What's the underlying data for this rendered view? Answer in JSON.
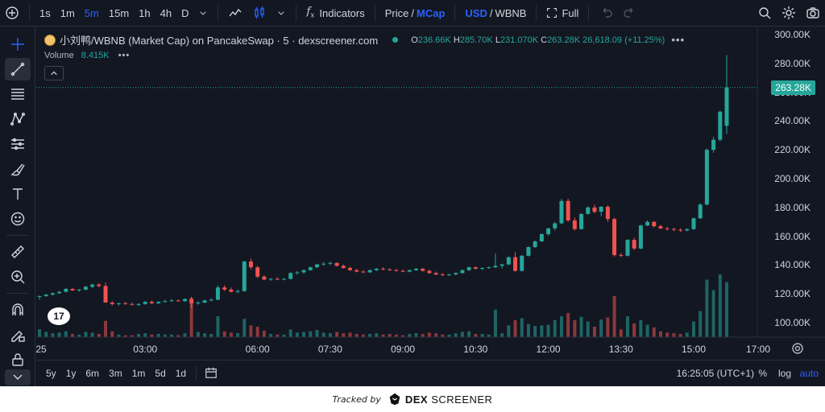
{
  "toolbar": {
    "timeframes": [
      "1s",
      "1m",
      "5m",
      "15m",
      "1h",
      "4h",
      "D"
    ],
    "active_timeframe": "5m",
    "indicators_label": "Indicators",
    "price_label": "Price",
    "mcap_label": "MCap",
    "usd_label": "USD",
    "wbnb_label": "WBNB",
    "full_label": "Full"
  },
  "legend": {
    "symbol": "小刘鸭/WBNB (Market Cap) on PancakeSwap · 5 · dexscreener.com",
    "o_key": "O",
    "o_val": "236.66K",
    "h_key": "H",
    "h_val": "285.70K",
    "l_key": "L",
    "l_val": "231.070K",
    "c_key": "C",
    "c_val": "263.28K",
    "change": "26,618.09 (+11.25%)",
    "volume_label": "Volume",
    "volume_value": "8.415K"
  },
  "price_axis": {
    "labels": [
      "300.00K",
      "280.00K",
      "260.00K",
      "240.00K",
      "220.00K",
      "200.00K",
      "180.00K",
      "160.00K",
      "140.00K",
      "120.00K",
      "100.00K"
    ],
    "current_price": "263.28K"
  },
  "time_axis": {
    "labels": [
      "25",
      "03:00",
      "06:00",
      "07:30",
      "09:00",
      "10:30",
      "12:00",
      "13:30",
      "15:00",
      "17:00"
    ]
  },
  "bottom": {
    "ranges": [
      "5y",
      "1y",
      "6m",
      "3m",
      "1m",
      "5d",
      "1d"
    ],
    "clock": "16:25:05 (UTC+1)",
    "pct": "%",
    "log": "log",
    "auto": "auto"
  },
  "footer": {
    "tracked_by": "Tracked by",
    "dex": "DEX",
    "screener": "SCREENER"
  },
  "tv_logo": "17",
  "colors": {
    "up": "#26a69a",
    "down": "#ef5350",
    "accent": "#2962ff",
    "bg": "#131722"
  },
  "chart_data": {
    "type": "candlestick",
    "ylim": [
      90000,
      305000
    ],
    "candles": [
      [
        118000,
        119000,
        116000,
        118500
      ],
      [
        118500,
        120000,
        118000,
        119500
      ],
      [
        119500,
        121000,
        119000,
        120500
      ],
      [
        120500,
        122000,
        120000,
        121500
      ],
      [
        121500,
        124000,
        121000,
        123500
      ],
      [
        123500,
        124000,
        122000,
        122500
      ],
      [
        122500,
        123500,
        121500,
        123000
      ],
      [
        123000,
        125500,
        122500,
        125000
      ],
      [
        125000,
        127000,
        124000,
        126500
      ],
      [
        126500,
        127500,
        124500,
        125500
      ],
      [
        125500,
        128000,
        115000,
        114000
      ],
      [
        114000,
        115000,
        112000,
        113000
      ],
      [
        113000,
        114000,
        112000,
        113500
      ],
      [
        113500,
        114500,
        112500,
        113000
      ],
      [
        113000,
        114000,
        112000,
        112500
      ],
      [
        112500,
        113500,
        111500,
        113000
      ],
      [
        113000,
        115000,
        112500,
        114500
      ],
      [
        114500,
        115500,
        113000,
        113500
      ],
      [
        113500,
        115000,
        113000,
        114500
      ],
      [
        114500,
        116000,
        114000,
        115000
      ],
      [
        115000,
        116500,
        114500,
        115500
      ],
      [
        115500,
        116000,
        114500,
        115000
      ],
      [
        115000,
        117000,
        114500,
        116500
      ],
      [
        116500,
        118000,
        110000,
        113500
      ],
      [
        113500,
        115000,
        112500,
        114000
      ],
      [
        114000,
        116000,
        113500,
        115500
      ],
      [
        115500,
        117000,
        115000,
        116000
      ],
      [
        116000,
        126000,
        115500,
        124500
      ],
      [
        124500,
        126000,
        122000,
        123000
      ],
      [
        123000,
        124500,
        121000,
        121500
      ],
      [
        121500,
        123000,
        120500,
        122000
      ],
      [
        122000,
        143000,
        121500,
        142500
      ],
      [
        142500,
        144500,
        137000,
        138500
      ],
      [
        138500,
        139500,
        131000,
        132000
      ],
      [
        132000,
        133000,
        129500,
        130000
      ],
      [
        130000,
        131000,
        129000,
        130500
      ],
      [
        130500,
        131500,
        129500,
        130000
      ],
      [
        130000,
        131000,
        129500,
        130500
      ],
      [
        130500,
        135000,
        130000,
        134500
      ],
      [
        134500,
        136000,
        133500,
        135000
      ],
      [
        135000,
        137000,
        134000,
        136500
      ],
      [
        136500,
        139000,
        136000,
        138500
      ],
      [
        138500,
        141000,
        138000,
        140500
      ],
      [
        140500,
        142000,
        139500,
        141000
      ],
      [
        141000,
        142500,
        140000,
        141500
      ],
      [
        141500,
        142000,
        139000,
        139500
      ],
      [
        139500,
        140500,
        137500,
        138000
      ],
      [
        138000,
        139000,
        136000,
        136500
      ],
      [
        136500,
        137500,
        135000,
        135500
      ],
      [
        135500,
        136500,
        134500,
        135000
      ],
      [
        135000,
        137000,
        134500,
        136500
      ],
      [
        136500,
        138000,
        136000,
        137500
      ],
      [
        137500,
        138500,
        136500,
        137000
      ],
      [
        137000,
        138000,
        136000,
        136500
      ],
      [
        136500,
        137500,
        135500,
        136000
      ],
      [
        136000,
        137000,
        135000,
        135500
      ],
      [
        135500,
        137000,
        135000,
        136500
      ],
      [
        136500,
        138000,
        136000,
        137500
      ],
      [
        137500,
        138000,
        135500,
        136000
      ],
      [
        136000,
        137000,
        134000,
        134500
      ],
      [
        134500,
        135500,
        133000,
        133500
      ],
      [
        133500,
        134500,
        132500,
        133000
      ],
      [
        133000,
        134000,
        132500,
        133500
      ],
      [
        133500,
        135000,
        133000,
        134500
      ],
      [
        134500,
        137000,
        134000,
        136500
      ],
      [
        136500,
        139000,
        136000,
        138500
      ],
      [
        138500,
        139000,
        137000,
        137500
      ],
      [
        137500,
        138500,
        136500,
        138000
      ],
      [
        138000,
        139000,
        137500,
        138500
      ],
      [
        138500,
        148000,
        138000,
        139500
      ],
      [
        139500,
        141000,
        137500,
        140500
      ],
      [
        140500,
        146000,
        140000,
        145500
      ],
      [
        145500,
        149000,
        135500,
        136000
      ],
      [
        136000,
        147000,
        135500,
        146500
      ],
      [
        146500,
        153000,
        146000,
        152500
      ],
      [
        152500,
        157000,
        152000,
        156500
      ],
      [
        156500,
        162000,
        156000,
        161500
      ],
      [
        161500,
        166000,
        160500,
        165500
      ],
      [
        165500,
        170000,
        164000,
        169000
      ],
      [
        169000,
        186000,
        168500,
        184500
      ],
      [
        184500,
        186000,
        170000,
        171000
      ],
      [
        171000,
        173000,
        164000,
        165000
      ],
      [
        165000,
        176000,
        164500,
        175500
      ],
      [
        175500,
        181000,
        175000,
        180000
      ],
      [
        180000,
        182000,
        176000,
        177000
      ],
      [
        177000,
        181000,
        174000,
        180500
      ],
      [
        180500,
        181500,
        170000,
        172000
      ],
      [
        172000,
        173000,
        146000,
        147000
      ],
      [
        147000,
        148500,
        145500,
        146500
      ],
      [
        146500,
        158000,
        146000,
        157500
      ],
      [
        157500,
        159000,
        150500,
        151500
      ],
      [
        151500,
        168000,
        151000,
        167500
      ],
      [
        167500,
        171000,
        167000,
        170000
      ],
      [
        170000,
        170500,
        166000,
        167000
      ],
      [
        167000,
        168000,
        165000,
        165500
      ],
      [
        165500,
        166500,
        164000,
        165000
      ],
      [
        165000,
        166000,
        163500,
        164500
      ],
      [
        164500,
        165500,
        163000,
        164000
      ],
      [
        164000,
        165500,
        163500,
        165000
      ],
      [
        165000,
        173000,
        164500,
        172500
      ],
      [
        172500,
        183000,
        172000,
        182000
      ],
      [
        182000,
        221000,
        181500,
        220000
      ],
      [
        220000,
        229000,
        218000,
        227000
      ],
      [
        227000,
        247000,
        226000,
        246500
      ],
      [
        236660,
        285700,
        231070,
        263280
      ]
    ],
    "volume": [
      [
        1200,
        1
      ],
      [
        800,
        1
      ],
      [
        600,
        1
      ],
      [
        700,
        1
      ],
      [
        900,
        1
      ],
      [
        500,
        0
      ],
      [
        400,
        1
      ],
      [
        800,
        1
      ],
      [
        700,
        1
      ],
      [
        500,
        0
      ],
      [
        2500,
        0
      ],
      [
        900,
        0
      ],
      [
        400,
        1
      ],
      [
        300,
        0
      ],
      [
        300,
        0
      ],
      [
        500,
        1
      ],
      [
        600,
        1
      ],
      [
        400,
        0
      ],
      [
        500,
        1
      ],
      [
        400,
        1
      ],
      [
        400,
        1
      ],
      [
        300,
        0
      ],
      [
        600,
        1
      ],
      [
        6000,
        0
      ],
      [
        800,
        1
      ],
      [
        600,
        1
      ],
      [
        500,
        1
      ],
      [
        3200,
        1
      ],
      [
        900,
        0
      ],
      [
        700,
        0
      ],
      [
        600,
        1
      ],
      [
        2800,
        1
      ],
      [
        1800,
        0
      ],
      [
        1600,
        0
      ],
      [
        1000,
        0
      ],
      [
        500,
        1
      ],
      [
        400,
        0
      ],
      [
        400,
        1
      ],
      [
        1200,
        1
      ],
      [
        700,
        1
      ],
      [
        800,
        1
      ],
      [
        900,
        1
      ],
      [
        1100,
        1
      ],
      [
        700,
        1
      ],
      [
        600,
        1
      ],
      [
        800,
        0
      ],
      [
        600,
        0
      ],
      [
        700,
        0
      ],
      [
        500,
        0
      ],
      [
        400,
        0
      ],
      [
        500,
        1
      ],
      [
        600,
        1
      ],
      [
        400,
        0
      ],
      [
        500,
        0
      ],
      [
        400,
        0
      ],
      [
        300,
        0
      ],
      [
        500,
        1
      ],
      [
        600,
        1
      ],
      [
        500,
        0
      ],
      [
        700,
        0
      ],
      [
        600,
        0
      ],
      [
        400,
        0
      ],
      [
        400,
        1
      ],
      [
        600,
        1
      ],
      [
        800,
        1
      ],
      [
        900,
        1
      ],
      [
        500,
        0
      ],
      [
        500,
        1
      ],
      [
        400,
        1
      ],
      [
        4200,
        1
      ],
      [
        600,
        1
      ],
      [
        1800,
        1
      ],
      [
        2600,
        0
      ],
      [
        2900,
        1
      ],
      [
        2000,
        1
      ],
      [
        1700,
        1
      ],
      [
        1800,
        1
      ],
      [
        1900,
        1
      ],
      [
        2600,
        1
      ],
      [
        3200,
        1
      ],
      [
        3700,
        0
      ],
      [
        2600,
        0
      ],
      [
        3100,
        1
      ],
      [
        2400,
        1
      ],
      [
        1600,
        0
      ],
      [
        2700,
        1
      ],
      [
        3000,
        0
      ],
      [
        6300,
        0
      ],
      [
        1200,
        0
      ],
      [
        3200,
        1
      ],
      [
        2100,
        0
      ],
      [
        2600,
        1
      ],
      [
        1900,
        1
      ],
      [
        1500,
        0
      ],
      [
        900,
        0
      ],
      [
        700,
        0
      ],
      [
        600,
        0
      ],
      [
        500,
        0
      ],
      [
        700,
        1
      ],
      [
        2400,
        1
      ],
      [
        4000,
        1
      ],
      [
        8800,
        1
      ],
      [
        7200,
        1
      ],
      [
        9600,
        1
      ],
      [
        8415,
        1
      ]
    ]
  }
}
